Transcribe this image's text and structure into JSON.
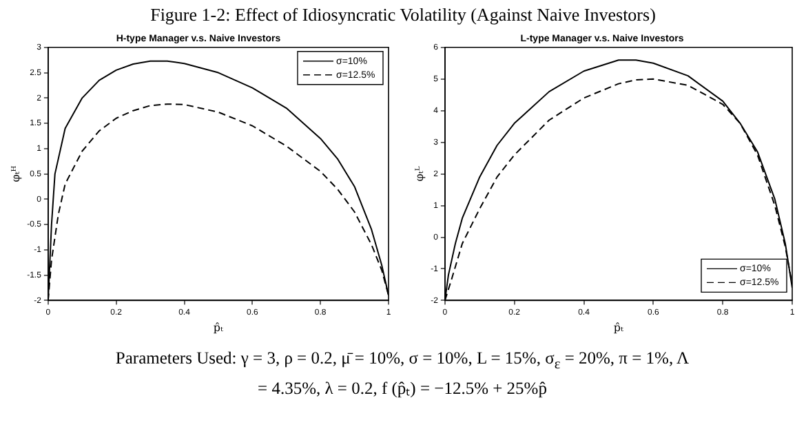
{
  "chart_data": [
    {
      "type": "line",
      "title": "H-type Manager v.s. Naive Investors",
      "xlabel": "p̂ₜ",
      "ylabel": "φₜᴴ",
      "annotations": [
        "Figure 1-2: Effect of Idiosyncratic Volatility (Against Naive Investors)",
        "Parameters Used: γ = 3, ρ = 0.2, μ̄ = 10%, σ = 10%, L = 15%, σ$_{ε}$ = 20%, π = 1%, Λ = 4.35%, λ = 0.2, f (p̂ₜ) = −12.5% + 25%p̂"
      ],
      "xlim": [
        0,
        1
      ],
      "xticks": [
        0,
        0.2,
        0.4,
        0.6,
        0.8,
        1
      ],
      "ylim": [
        -2,
        3
      ],
      "yticks": [
        -2,
        -1.5,
        -1,
        -0.5,
        0,
        0.5,
        1,
        1.5,
        2,
        2.5,
        3
      ],
      "grid": false,
      "legend": "top right",
      "marker": "none",
      "series": [
        {
          "name": "σ=10%",
          "color": "#000000",
          "line_style": "solid",
          "x": [
            0,
            0.01,
            0.02,
            0.05,
            0.1,
            0.15,
            0.2,
            0.25,
            0.3,
            0.35,
            0.4,
            0.5,
            0.6,
            0.7,
            0.8,
            0.85,
            0.9,
            0.95,
            0.98,
            1
          ],
          "values": [
            -2,
            -0.5,
            0.5,
            1.4,
            2,
            2.35,
            2.55,
            2.67,
            2.73,
            2.73,
            2.68,
            2.5,
            2.2,
            1.8,
            1.2,
            0.8,
            0.25,
            -0.6,
            -1.3,
            -1.9
          ]
        },
        {
          "name": "σ=12.5%",
          "color": "#000000",
          "line_style": "dashed",
          "x": [
            0,
            0.01,
            0.03,
            0.05,
            0.1,
            0.15,
            0.2,
            0.25,
            0.3,
            0.35,
            0.4,
            0.5,
            0.6,
            0.7,
            0.8,
            0.85,
            0.9,
            0.95,
            0.98,
            1
          ],
          "values": [
            -2,
            -1.2,
            -0.3,
            0.3,
            0.95,
            1.35,
            1.6,
            1.75,
            1.85,
            1.88,
            1.87,
            1.72,
            1.45,
            1.05,
            0.55,
            0.2,
            -0.25,
            -0.9,
            -1.4,
            -1.9
          ]
        }
      ]
    },
    {
      "type": "line",
      "title": "L-type Manager v.s. Naive Investors",
      "xlabel": "p̂ₜ",
      "ylabel": "φₜᴸ",
      "xlim": [
        0,
        1
      ],
      "xticks": [
        0,
        0.2,
        0.4,
        0.6,
        0.8,
        1
      ],
      "ylim": [
        -2,
        6
      ],
      "yticks": [
        -2,
        -1,
        0,
        1,
        2,
        3,
        4,
        5,
        6
      ],
      "grid": false,
      "legend": "bottom right",
      "marker": "none",
      "series": [
        {
          "name": "σ=10%",
          "color": "#000000",
          "line_style": "solid",
          "x": [
            0,
            0.01,
            0.03,
            0.05,
            0.1,
            0.15,
            0.2,
            0.3,
            0.4,
            0.5,
            0.55,
            0.6,
            0.7,
            0.8,
            0.85,
            0.9,
            0.95,
            0.98,
            1
          ],
          "values": [
            -2,
            -1.2,
            -0.2,
            0.6,
            1.9,
            2.9,
            3.6,
            4.6,
            5.25,
            5.6,
            5.6,
            5.5,
            5.1,
            4.3,
            3.6,
            2.7,
            1.2,
            -0.2,
            -1.6
          ]
        },
        {
          "name": "σ=12.5%",
          "color": "#000000",
          "line_style": "dashed",
          "x": [
            0,
            0.02,
            0.05,
            0.1,
            0.15,
            0.2,
            0.3,
            0.4,
            0.5,
            0.55,
            0.6,
            0.7,
            0.8,
            0.85,
            0.9,
            0.95,
            0.98,
            1
          ],
          "values": [
            -2,
            -1.3,
            -0.2,
            0.9,
            1.9,
            2.6,
            3.7,
            4.4,
            4.85,
            4.97,
            5,
            4.8,
            4.2,
            3.6,
            2.6,
            1,
            -0.3,
            -1.5
          ]
        }
      ]
    }
  ]
}
